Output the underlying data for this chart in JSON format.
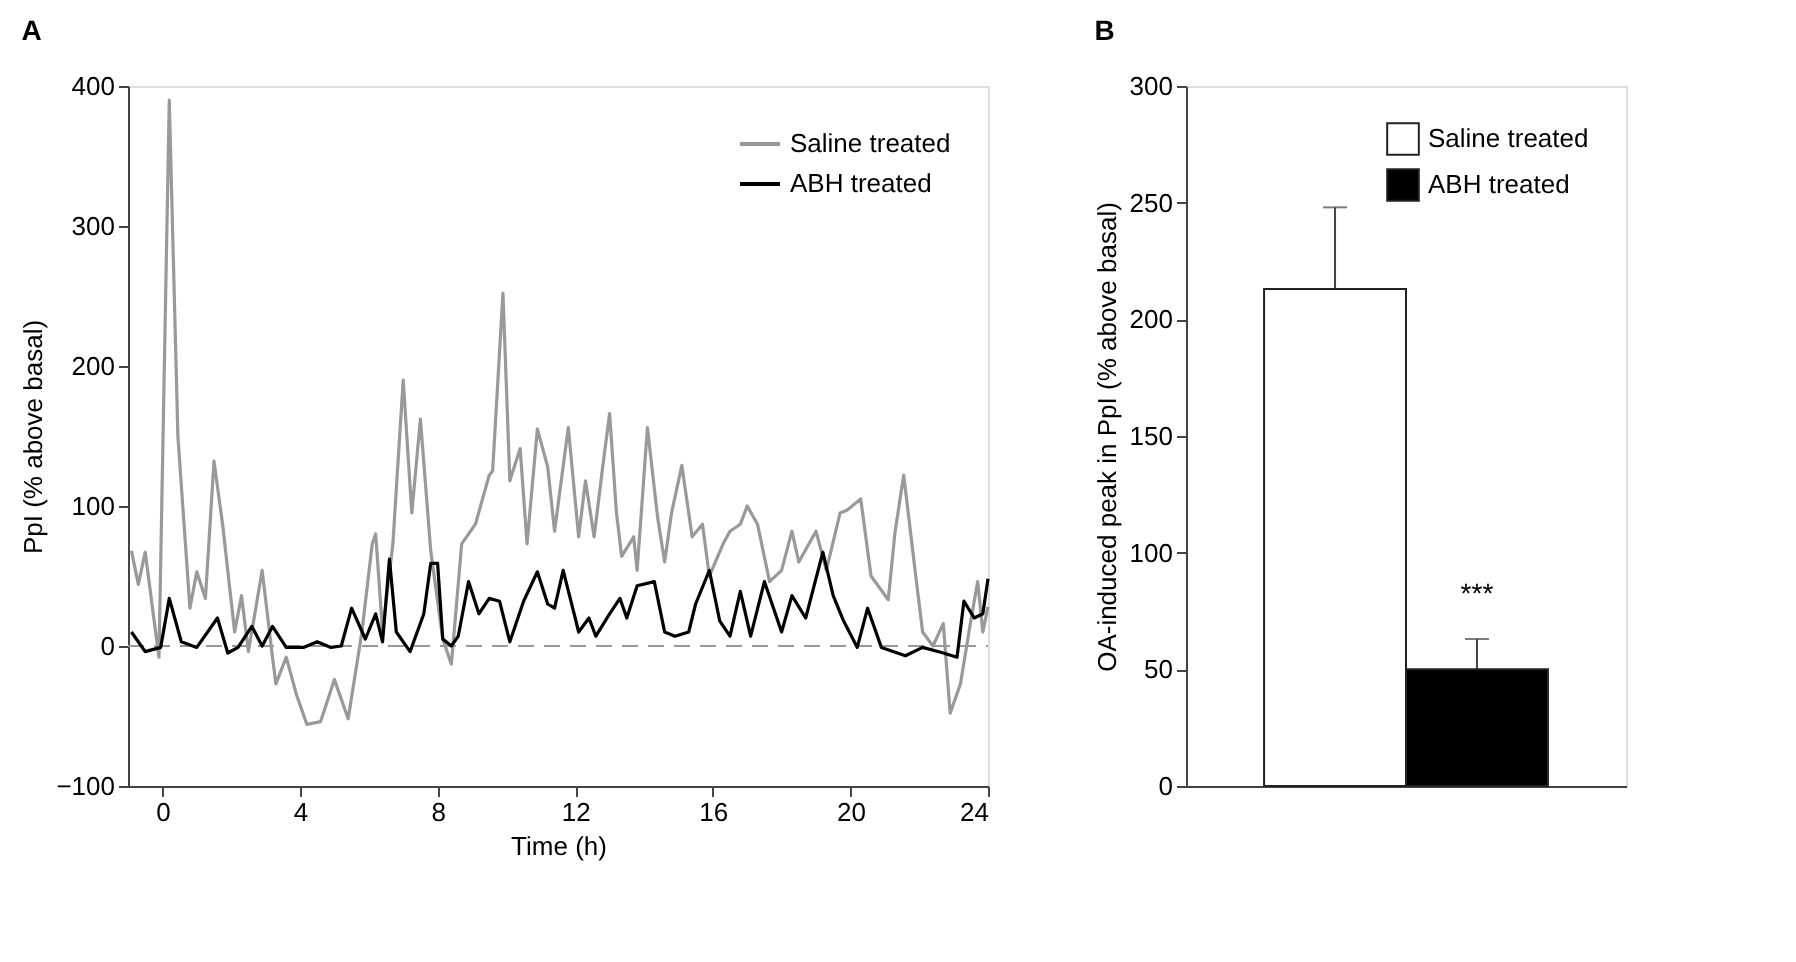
{
  "chart_data": [
    {
      "type": "line",
      "title": "A",
      "xlabel": "Time (h)",
      "ylabel": "PpI (% above basal)",
      "xlim": [
        -1,
        24
      ],
      "xticks": [
        0,
        4,
        8,
        12,
        16,
        20,
        24
      ],
      "ylim": [
        -100,
        400
      ],
      "yticks": [
        -100,
        0,
        100,
        200,
        300,
        400
      ],
      "grid": false,
      "legend": "top right",
      "marker": "none",
      "line_style": "solid",
      "ref_lines": [
        {
          "axis": "y",
          "value": 0,
          "color": "#999999",
          "line_style": "dashed"
        }
      ],
      "series": [
        {
          "name": "Saline treated",
          "color": "#999999",
          "x": [
            -0.9,
            -0.7,
            -0.5,
            -0.1,
            0.2,
            0.45,
            0.8,
            1.0,
            1.25,
            1.5,
            1.75,
            2.1,
            2.3,
            2.5,
            2.9,
            3.2,
            3.3,
            3.6,
            3.9,
            4.2,
            4.6,
            5.0,
            5.4,
            5.8,
            6.1,
            6.2,
            6.4,
            6.7,
            7.0,
            7.25,
            7.5,
            7.8,
            8.15,
            8.4,
            8.7,
            9.1,
            9.5,
            9.6,
            9.9,
            10.1,
            10.4,
            10.6,
            10.9,
            11.2,
            11.4,
            11.8,
            12.1,
            12.3,
            12.55,
            12.8,
            13.0,
            13.2,
            13.35,
            13.7,
            13.8,
            14.1,
            14.4,
            14.6,
            14.8,
            15.1,
            15.4,
            15.7,
            15.9,
            16.3,
            16.5,
            16.8,
            17.0,
            17.3,
            17.65,
            18.0,
            18.3,
            18.5,
            19.0,
            19.3,
            19.7,
            19.9,
            20.3,
            20.6,
            21.1,
            21.3,
            21.55,
            21.9,
            22.1,
            22.4,
            22.7,
            22.9,
            23.2,
            23.5,
            23.7,
            23.85,
            24.0
          ],
          "values": [
            68,
            44,
            67,
            -8,
            390,
            150,
            27,
            53,
            34,
            132,
            87,
            10,
            36,
            -4,
            54,
            -8,
            -27,
            -8,
            -35,
            -56,
            -54,
            -24,
            -52,
            10,
            73,
            80,
            10,
            73,
            190,
            95,
            162,
            68,
            5,
            -13,
            73,
            87,
            122,
            125,
            252,
            118,
            141,
            73,
            155,
            128,
            82,
            156,
            78,
            118,
            78,
            128,
            166,
            95,
            64,
            78,
            54,
            156,
            91,
            60,
            95,
            129,
            78,
            87,
            50,
            73,
            82,
            87,
            100,
            87,
            46,
            54,
            82,
            60,
            82,
            54,
            95,
            97,
            105,
            50,
            33,
            82,
            122,
            50,
            10,
            0,
            16,
            -48,
            -27,
            18,
            46,
            10,
            28
          ]
        },
        {
          "name": "ABH treated",
          "color": "#000000",
          "x": [
            -0.9,
            -0.5,
            -0.05,
            0.2,
            0.55,
            1.0,
            1.6,
            1.9,
            2.2,
            2.6,
            2.9,
            3.2,
            3.6,
            4.1,
            4.5,
            4.9,
            5.2,
            5.5,
            5.9,
            6.2,
            6.4,
            6.6,
            6.8,
            7.2,
            7.6,
            7.8,
            8.0,
            8.15,
            8.4,
            8.6,
            8.9,
            9.2,
            9.5,
            9.8,
            10.1,
            10.5,
            10.9,
            11.2,
            11.4,
            11.65,
            12.0,
            12.1,
            12.4,
            12.6,
            13.0,
            13.3,
            13.5,
            13.8,
            14.3,
            14.6,
            14.9,
            15.3,
            15.5,
            15.9,
            16.2,
            16.5,
            16.8,
            17.1,
            17.5,
            18.0,
            18.3,
            18.7,
            19.2,
            19.5,
            19.8,
            20.2,
            20.5,
            20.9,
            21.6,
            22.1,
            22.7,
            23.1,
            23.3,
            23.6,
            23.85,
            24.0
          ],
          "values": [
            10,
            -4,
            -1,
            34,
            3,
            -1,
            20,
            -5,
            -1,
            14,
            0,
            14,
            -1,
            -1,
            3,
            -1,
            0,
            27,
            5,
            23,
            3,
            62,
            10,
            -4,
            23,
            59,
            59,
            5,
            0,
            7,
            46,
            23,
            34,
            32,
            3,
            32,
            53,
            30,
            27,
            54,
            20,
            10,
            20,
            7,
            23,
            34,
            20,
            43,
            46,
            10,
            7,
            10,
            30,
            54,
            18,
            7,
            39,
            7,
            46,
            10,
            36,
            20,
            67,
            36,
            18,
            -1,
            27,
            -1,
            -7,
            -1,
            -5,
            -8,
            32,
            20,
            23,
            48
          ]
        }
      ]
    },
    {
      "type": "bar",
      "title": "B",
      "ylabel": "OA-induced peak in PpI (% above basal)",
      "categories": [
        null,
        null
      ],
      "ylim": [
        0,
        300
      ],
      "yticks": [
        0,
        50,
        100,
        150,
        200,
        250,
        300
      ],
      "grid": false,
      "legend": "top right",
      "annotations": [
        "***"
      ],
      "series": [
        {
          "name": "Saline treated",
          "color": "#ffffff",
          "values": [
            213,
            null
          ],
          "errors": [
            [
              213,
              248
            ],
            null
          ]
        },
        {
          "name": "ABH treated",
          "color": "#000000",
          "values": [
            null,
            50
          ],
          "errors": [
            null,
            [
              50,
              63
            ]
          ]
        }
      ]
    }
  ]
}
